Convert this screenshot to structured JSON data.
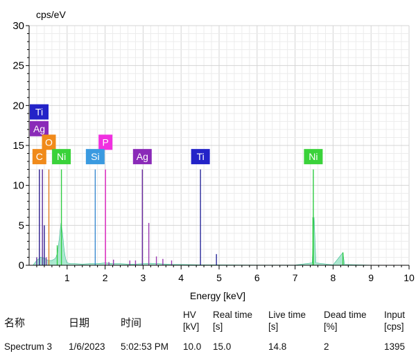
{
  "chart_data": {
    "type": "line",
    "ylabel": "cps/eV",
    "xlabel": "Energy [keV]",
    "xlim": [
      0,
      10
    ],
    "ylim": [
      0,
      30
    ],
    "x_ticks": [
      "1",
      "2",
      "3",
      "4",
      "5",
      "6",
      "7",
      "8",
      "9",
      "10"
    ],
    "y_ticks": [
      "0",
      "5",
      "10",
      "15",
      "20",
      "25",
      "30"
    ],
    "grid": true,
    "peaks": [
      {
        "x": 0.2,
        "y": 1.0,
        "color": "#5a2a99"
      },
      {
        "x": 0.27,
        "y": 12.0,
        "color": "#2a1a8c"
      },
      {
        "x": 0.35,
        "y": 12.0,
        "color": "#5a2a99"
      },
      {
        "x": 0.4,
        "y": 5.0,
        "color": "#2a1a8c"
      },
      {
        "x": 0.45,
        "y": 1.0,
        "color": "#8a3ab0"
      },
      {
        "x": 0.52,
        "y": 12.0,
        "color": "#e07a20"
      },
      {
        "x": 0.74,
        "y": 2.5,
        "color": "#2ecc40"
      },
      {
        "x": 0.85,
        "y": 12.0,
        "color": "#2ecc40"
      },
      {
        "x": 1.74,
        "y": 12.0,
        "color": "#3a8ad0"
      },
      {
        "x": 2.01,
        "y": 12.0,
        "color": "#e020c0"
      },
      {
        "x": 2.1,
        "y": 0.4,
        "color": "#9a3ab0"
      },
      {
        "x": 2.22,
        "y": 0.7,
        "color": "#9a3ab0"
      },
      {
        "x": 2.65,
        "y": 0.6,
        "color": "#9a3ab0"
      },
      {
        "x": 2.8,
        "y": 0.6,
        "color": "#9a3ab0"
      },
      {
        "x": 2.98,
        "y": 12.0,
        "color": "#6a2aa0"
      },
      {
        "x": 3.15,
        "y": 5.3,
        "color": "#9a3ab0"
      },
      {
        "x": 3.35,
        "y": 1.1,
        "color": "#9a3ab0"
      },
      {
        "x": 3.52,
        "y": 0.8,
        "color": "#9a3ab0"
      },
      {
        "x": 3.75,
        "y": 0.6,
        "color": "#9a3ab0"
      },
      {
        "x": 4.51,
        "y": 12.0,
        "color": "#2a2a9a"
      },
      {
        "x": 4.93,
        "y": 1.4,
        "color": "#2a2a9a"
      },
      {
        "x": 7.47,
        "y": 6.0,
        "color": "#2ecc40"
      },
      {
        "x": 7.48,
        "y": 12.0,
        "color": "#2ecc40"
      },
      {
        "x": 8.26,
        "y": 1.6,
        "color": "#2ecc40"
      }
    ],
    "spectrum": {
      "x": [
        0.1,
        0.2,
        0.3,
        0.4,
        0.5,
        0.6,
        0.7,
        0.75,
        0.8,
        0.84,
        0.88,
        0.92,
        0.96,
        1.0,
        1.1,
        1.2,
        1.4,
        1.6,
        1.8,
        2.0,
        2.2,
        2.4,
        2.6,
        2.8,
        3.0,
        3.2,
        3.4,
        3.6,
        3.8,
        4.0,
        4.5,
        5.0,
        6.0,
        7.0,
        7.45,
        7.5,
        7.55,
        8.0,
        8.26,
        8.3,
        9.0,
        10.0
      ],
      "y": [
        0,
        0.6,
        1.0,
        0.9,
        0.6,
        0.6,
        0.9,
        1.6,
        3.6,
        5.3,
        4.0,
        2.0,
        0.8,
        0.3,
        0.2,
        0.2,
        0.15,
        0.2,
        0.2,
        0.3,
        0.2,
        0.2,
        0.15,
        0.15,
        0.2,
        0.25,
        0.2,
        0.15,
        0.1,
        0.1,
        0.05,
        0.05,
        0.03,
        0.03,
        0.3,
        6.0,
        0.3,
        0.05,
        1.6,
        0.1,
        0.02,
        0
      ]
    },
    "labels": [
      {
        "text": "Ti",
        "x": 0.25,
        "y": 19.2,
        "color": "#2323c8"
      },
      {
        "text": "Ag",
        "x": 0.25,
        "y": 17.1,
        "color": "#8a2ab8"
      },
      {
        "text": "O",
        "x": 0.52,
        "y": 15.4,
        "color": "#f08a1a"
      },
      {
        "text": "P",
        "x": 2.01,
        "y": 15.4,
        "color": "#f030e0"
      },
      {
        "text": "C",
        "x": 0.27,
        "y": 13.6,
        "color": "#f08a1a"
      },
      {
        "text": "Ni",
        "x": 0.85,
        "y": 13.6,
        "color": "#3ad23a"
      },
      {
        "text": "Si",
        "x": 1.74,
        "y": 13.6,
        "color": "#3a9ae0"
      },
      {
        "text": "Ag",
        "x": 2.98,
        "y": 13.6,
        "color": "#8a2ab8"
      },
      {
        "text": "Ti",
        "x": 4.51,
        "y": 13.6,
        "color": "#2323c8"
      },
      {
        "text": "Ni",
        "x": 7.48,
        "y": 13.6,
        "color": "#3ad23a"
      }
    ]
  },
  "table": {
    "headers": [
      {
        "line1": "名称",
        "line2": ""
      },
      {
        "line1": "日期",
        "line2": ""
      },
      {
        "line1": "时间",
        "line2": ""
      },
      {
        "line1": "HV",
        "line2": "[kV]"
      },
      {
        "line1": "Real time",
        "line2": "[s]"
      },
      {
        "line1": "Live time",
        "line2": "[s]"
      },
      {
        "line1": "Dead time",
        "line2": "[%]"
      },
      {
        "line1": "Input",
        "line2": "[cps]"
      }
    ],
    "row": [
      "Spectrum 3",
      "1/6/2023",
      "5:02:53 PM",
      "10.0",
      "15.0",
      "14.8",
      "2",
      "1395"
    ]
  }
}
